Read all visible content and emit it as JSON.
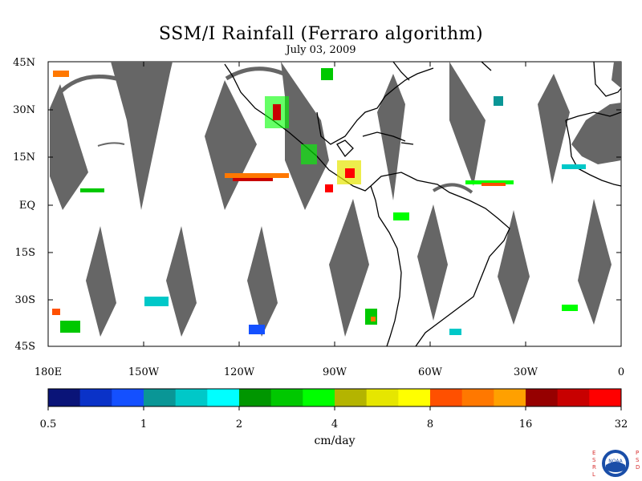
{
  "title": "SSM/I Rainfall (Ferraro algorithm)",
  "subtitle": "July 03, 2009",
  "latitude_labels": [
    "45N",
    "30N",
    "15N",
    "EQ",
    "15S",
    "30S",
    "45S"
  ],
  "longitude_labels": [
    "180E",
    "150W",
    "120W",
    "90W",
    "60W",
    "30W",
    "0"
  ],
  "colorbar": {
    "tick_labels": [
      "0.5",
      "1",
      "2",
      "4",
      "8",
      "16",
      "32"
    ],
    "units": "cm/day",
    "colors": [
      "#0a1478",
      "#0a32c8",
      "#1450ff",
      "#0a9696",
      "#00c8c8",
      "#00ffff",
      "#009600",
      "#00c800",
      "#00ff00",
      "#b4b400",
      "#e6e600",
      "#ffff00",
      "#ff5000",
      "#ff7800",
      "#ffa000",
      "#960000",
      "#c80000",
      "#ff0000"
    ]
  },
  "swath_color": "#666666",
  "land_outline_color": "#000000",
  "logo": {
    "text_left": "ESRL",
    "text_right": "PSD",
    "center": "NOAA"
  }
}
